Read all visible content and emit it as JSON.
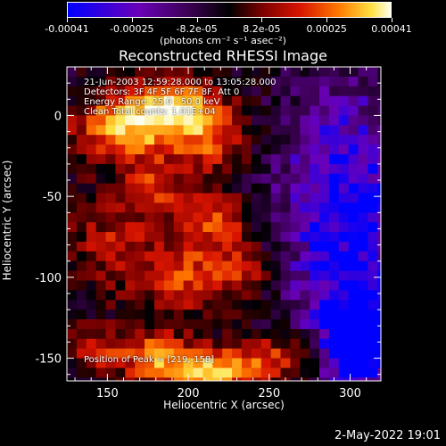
{
  "colorbar": {
    "ticks": [
      "-0.00041",
      "-0.00025",
      "-8.2e-05",
      "8.2e-05",
      "0.00025",
      "0.00041"
    ],
    "unit_label": "(photons cm⁻² s⁻¹ asec⁻²)",
    "colors": [
      "#0000ff",
      "#6a00b8",
      "#3a0050",
      "#000000",
      "#7a0000",
      "#d81400",
      "#ff7a00",
      "#ffe040",
      "#fffff0"
    ]
  },
  "annotations": {
    "time_range": "21-Jun-2003 12:59:28.000 to 13:05:28.000",
    "detectors": "Detectors: 3F 4F 5F 6F 7F 8F, Att 0",
    "energy": "Energy Range: 25.0 - 50.0 keV",
    "method": "Clean     Total counts: 1.01E+04",
    "peak": "Position of Peak = [219,-158]"
  },
  "footer": {
    "date": "2-May-2022 19:01"
  },
  "chart_data": {
    "type": "heatmap",
    "title": "Reconstructed RHESSI Image",
    "xlabel": "Heliocentric X (arcsec)",
    "ylabel": "Heliocentric Y (arcsec)",
    "xlim": [
      125,
      319
    ],
    "ylim": [
      -164,
      30
    ],
    "xticks": [
      150,
      200,
      250,
      300
    ],
    "yticks": [
      0,
      -50,
      -100,
      -150
    ],
    "value_range": [
      -0.00041,
      0.00041
    ],
    "peak_position": [
      219,
      -158
    ],
    "emission_regions": [
      {
        "x": 190,
        "y": 5,
        "sx": 20,
        "sy": 12,
        "value": 0.00038
      },
      {
        "x": 170,
        "y": -10,
        "sx": 25,
        "sy": 15,
        "value": 0.00025
      },
      {
        "x": 150,
        "y": -5,
        "sx": 15,
        "sy": 10,
        "value": 0.00018
      },
      {
        "x": 215,
        "y": -15,
        "sx": 15,
        "sy": 15,
        "value": 0.00022
      },
      {
        "x": 180,
        "y": -45,
        "sx": 15,
        "sy": 12,
        "value": 0.0002
      },
      {
        "x": 155,
        "y": -80,
        "sx": 20,
        "sy": 20,
        "value": 0.00018
      },
      {
        "x": 215,
        "y": -65,
        "sx": 15,
        "sy": 12,
        "value": 0.00025
      },
      {
        "x": 200,
        "y": -100,
        "sx": 18,
        "sy": 15,
        "value": 0.00025
      },
      {
        "x": 235,
        "y": -95,
        "sx": 12,
        "sy": 15,
        "value": 0.00018
      },
      {
        "x": 215,
        "y": -158,
        "sx": 18,
        "sy": 10,
        "value": 0.00041
      },
      {
        "x": 180,
        "y": -150,
        "sx": 15,
        "sy": 12,
        "value": 0.0003
      },
      {
        "x": 255,
        "y": -150,
        "sx": 15,
        "sy": 10,
        "value": 0.00025
      },
      {
        "x": 145,
        "y": -145,
        "sx": 15,
        "sy": 10,
        "value": 0.00018
      },
      {
        "x": 298,
        "y": -60,
        "sx": 30,
        "sy": 60,
        "value": -0.0003
      },
      {
        "x": 305,
        "y": -140,
        "sx": 15,
        "sy": 20,
        "value": -0.00035
      }
    ]
  }
}
